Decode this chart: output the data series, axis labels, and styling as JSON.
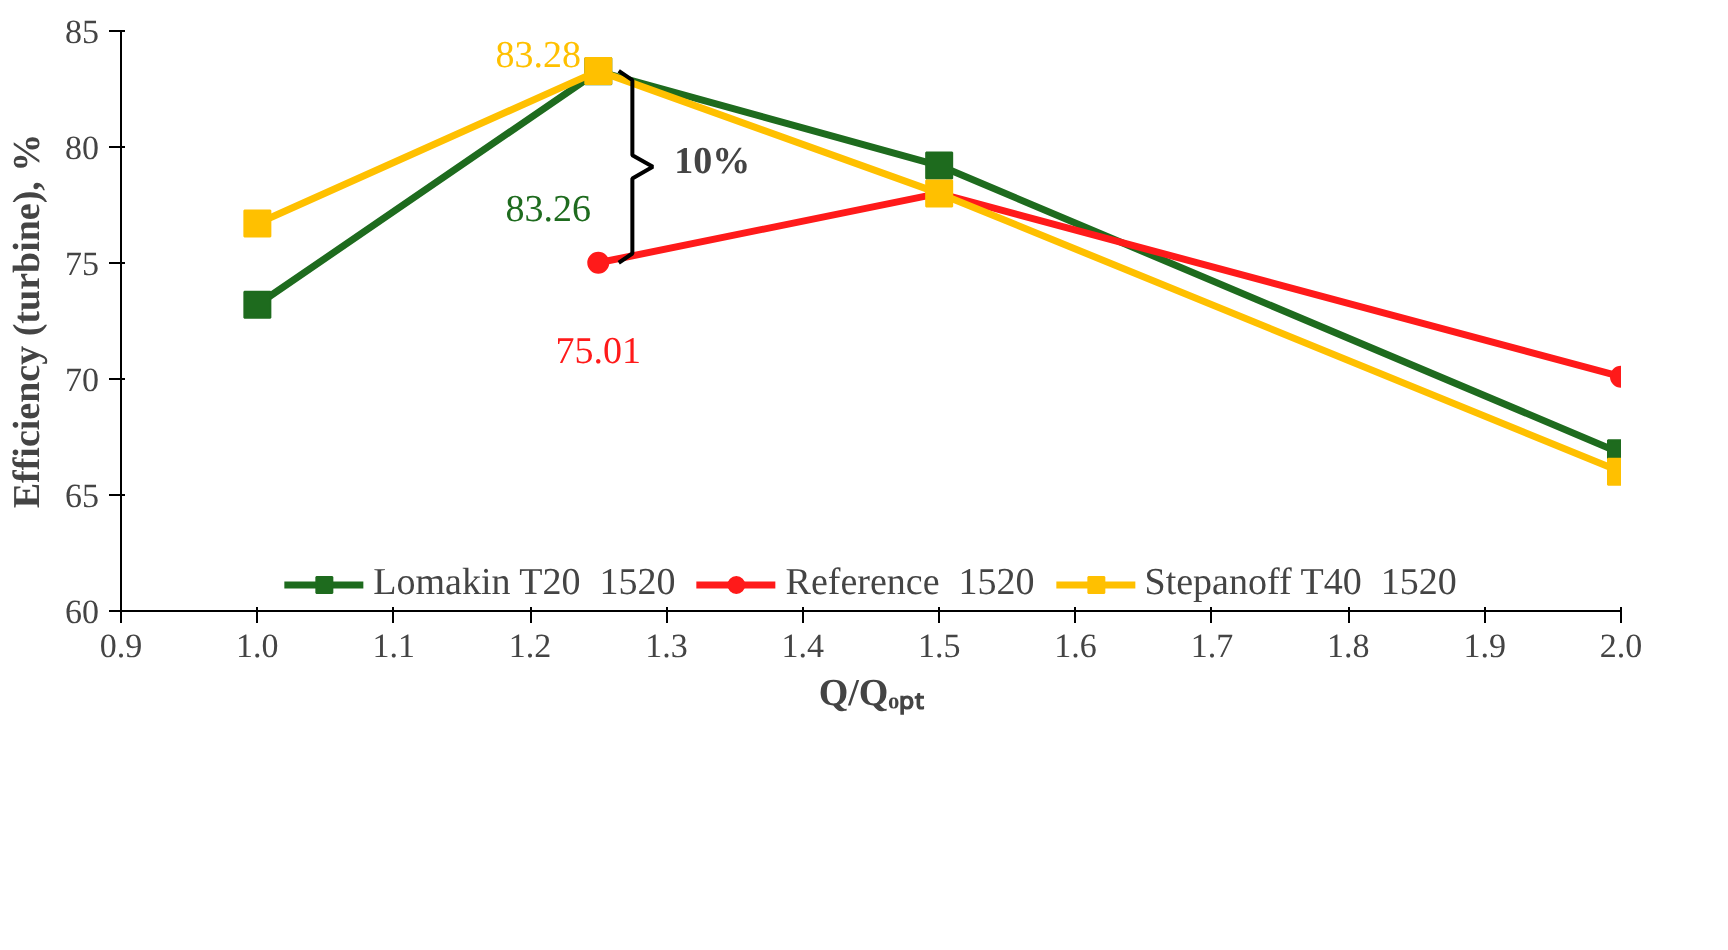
{
  "chart_data": {
    "type": "line",
    "xlabel": "Q/Qₒₚₜ",
    "ylabel": "Efficiency (turbine), %",
    "xlim": [
      0.9,
      2.0
    ],
    "xticks": [
      0.9,
      {
        "value": 1,
        "label": "1.0"
      },
      1.1,
      1.2,
      1.3,
      1.4,
      1.5,
      1.6,
      1.7,
      1.8,
      1.9,
      {
        "value": 2,
        "label": "2.0"
      }
    ],
    "ylim": [
      60,
      85
    ],
    "yticks": [
      60,
      65,
      70,
      75,
      80,
      85
    ],
    "grid": false,
    "legend": "bottom",
    "line_style": "solid",
    "x": [
      1.0,
      1.25,
      1.5,
      2.0
    ],
    "series": [
      {
        "name": "Lomakin T20  1520",
        "color": "#1e6b1e",
        "marker": "square",
        "values": [
          73.2,
          83.26,
          79.2,
          66.8
        ],
        "value_labels": [
          null,
          "83.26",
          null,
          null
        ]
      },
      {
        "name": "Reference  1520",
        "color": "#ff1a1a",
        "marker": "circle",
        "values": [
          null,
          75.01,
          78.0,
          70.1
        ],
        "value_labels": [
          null,
          "75.01",
          null,
          null
        ]
      },
      {
        "name": "Stepanoff T40  1520",
        "color": "#ffc000",
        "marker": "square",
        "values": [
          76.7,
          83.28,
          78.0,
          66.0
        ],
        "value_labels": [
          null,
          "83.28",
          null,
          null
        ]
      }
    ],
    "annotations": [
      "10%"
    ]
  }
}
